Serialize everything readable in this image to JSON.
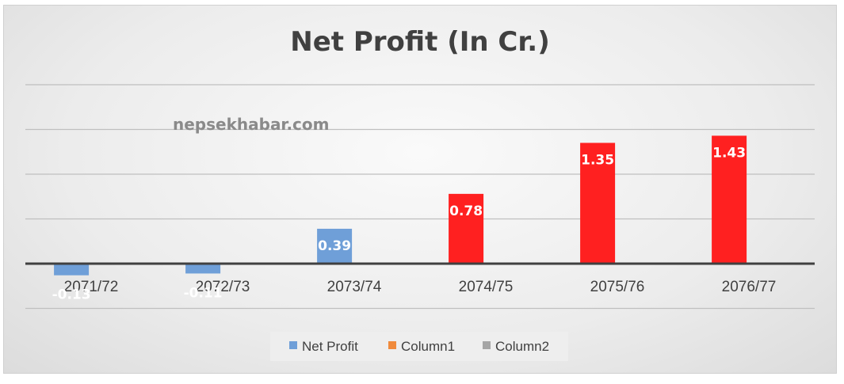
{
  "watermark": "nepsekhabar.com",
  "chart_data": {
    "type": "bar",
    "title": "Net Profit (In Cr.)",
    "categories": [
      "2071/72",
      "2072/73",
      "2073/74",
      "2074/75",
      "2075/76",
      "2076/77"
    ],
    "series": [
      {
        "name": "Net Profit",
        "values": [
          -0.13,
          -0.11,
          0.39,
          0.78,
          1.35,
          1.43
        ],
        "labels": [
          "-0.13",
          "-0.11",
          "0.39",
          "0.78",
          "1.35",
          "1.43"
        ],
        "point_colors": [
          "#6f9fd8",
          "#6f9fd8",
          "#6f9fd8",
          "#ff2020",
          "#ff2020",
          "#ff2020"
        ]
      }
    ],
    "legend": {
      "position": "bottom",
      "entries": [
        {
          "name": "Net Profit",
          "color": "#6f9fd8"
        },
        {
          "name": "Column1",
          "color": "#f08a3c"
        },
        {
          "name": "Column2",
          "color": "#a5a5a5"
        }
      ]
    },
    "ylim": [
      -0.5,
      2.0
    ],
    "gridlines": true,
    "y_axis_labels_shown": false
  }
}
